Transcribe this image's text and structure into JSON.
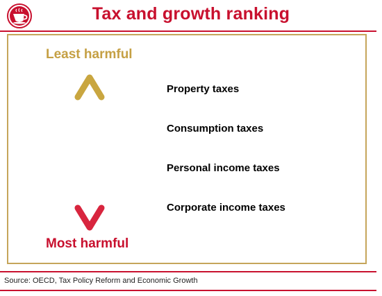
{
  "title": "Tax and growth ranking",
  "scale": {
    "top_label": "Least harmful",
    "bottom_label": "Most harmful"
  },
  "ranking": [
    "Property taxes",
    "Consumption taxes",
    "Personal income taxes",
    "Corporate income taxes"
  ],
  "source": "Source: OECD, Tax Policy Reform and Economic Growth",
  "colors": {
    "brand_red": "#c8102e",
    "gold": "#c5a044",
    "frame": "#c5a55a"
  },
  "icons": {
    "logo": "coffee-cup-logo-icon",
    "arrow": "double-headed-vertical-arrow"
  }
}
